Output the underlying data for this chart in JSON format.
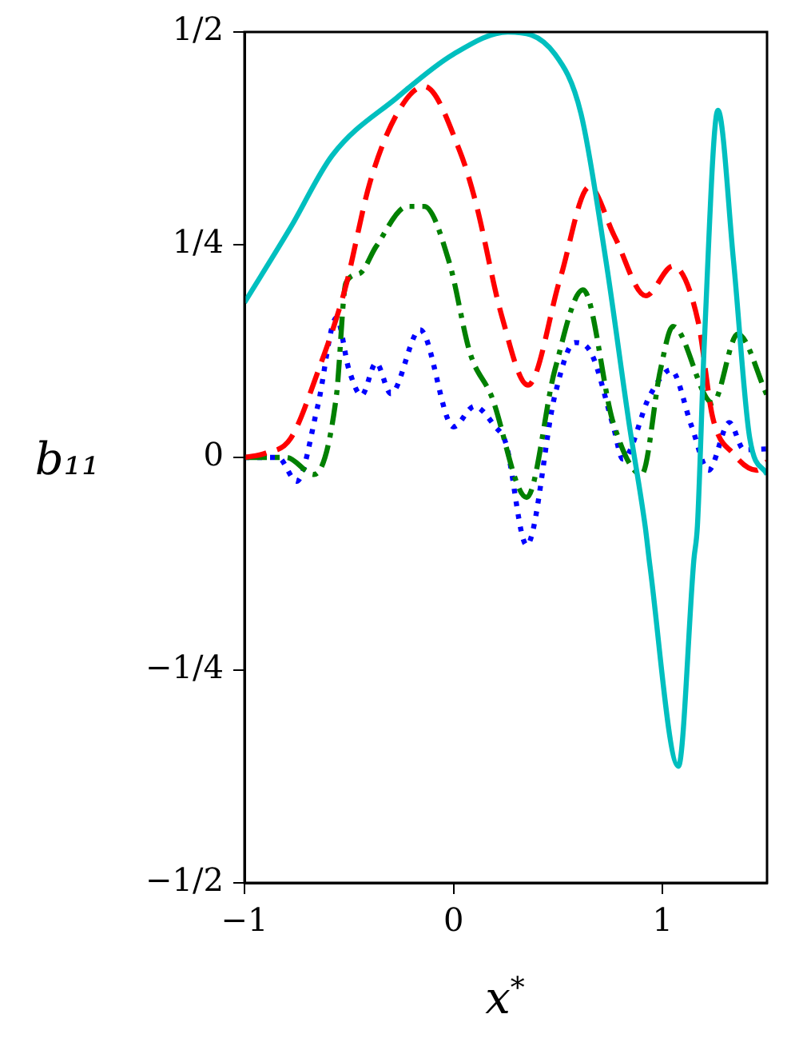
{
  "chart_data": {
    "type": "line",
    "xlabel": "x$^{*}$",
    "ylabel": "b₁₁",
    "xlim": [
      -1,
      1.5
    ],
    "ylim": [
      -0.5,
      0.5
    ],
    "xticks": [
      {
        "value": -1,
        "label": "−1"
      },
      0,
      1
    ],
    "yticks": [
      {
        "value": -0.5,
        "label": "−1/2"
      },
      {
        "value": -0.25,
        "label": "−1/4"
      },
      {
        "value": 0,
        "label": "0"
      },
      {
        "value": 0.25,
        "label": "1/4"
      },
      {
        "value": 0.5,
        "label": "1/2"
      }
    ],
    "grid": false,
    "legend": false,
    "marker": "none",
    "series": [
      {
        "color": "#00bfbf",
        "line_style": "solid",
        "x": [
          -1,
          -0.78,
          -0.58,
          -0.27,
          0,
          0.26,
          0.485,
          0.61,
          0.73,
          0.84,
          0.917,
          0.94,
          1.076,
          1.15,
          1.167,
          1.2,
          1.265,
          1.34,
          1.417,
          1.5
        ],
        "values": [
          0.182,
          0.27,
          0.355,
          0.423,
          0.474,
          0.5,
          0.474,
          0.404,
          0.23,
          0.04,
          -0.081,
          -0.128,
          -0.363,
          -0.12,
          -0.08,
          0.135,
          0.408,
          0.23,
          0.023,
          -0.02
        ]
      },
      {
        "color": "#ff0000",
        "line_style": "dashed",
        "x": [
          -1,
          -0.9,
          -0.78,
          -0.65,
          -0.52,
          -0.4,
          -0.27,
          -0.14,
          0.03,
          0.106,
          0.23,
          0.356,
          0.51,
          0.65,
          0.77,
          0.92,
          1.05,
          1.17,
          1.24,
          1.34,
          1.45,
          1.5
        ],
        "values": [
          0,
          0.005,
          0.022,
          0.1,
          0.197,
          0.323,
          0.404,
          0.436,
          0.36,
          0.3,
          0.167,
          0.085,
          0.21,
          0.318,
          0.26,
          0.19,
          0.225,
          0.16,
          0.047,
          0.004,
          -0.015,
          -0.005
        ]
      },
      {
        "color": "#008000",
        "line_style": "dashdot",
        "x": [
          -1,
          -0.8,
          -0.667,
          -0.56,
          -0.515,
          -0.45,
          -0.37,
          -0.22,
          -0.14,
          -0.02,
          0.08,
          0.18,
          0.35,
          0.485,
          0.62,
          0.765,
          0.9,
          0.99,
          1.05,
          1.24,
          1.36,
          1.5
        ],
        "values": [
          0,
          0,
          -0.02,
          0.073,
          0.205,
          0.216,
          0.248,
          0.295,
          0.295,
          0.229,
          0.122,
          0.073,
          -0.047,
          0.103,
          0.197,
          0.04,
          -0.02,
          0.103,
          0.154,
          0.064,
          0.145,
          0.073
        ]
      },
      {
        "color": "#0000ff",
        "line_style": "dotted",
        "x": [
          -1,
          -0.84,
          -0.75,
          -0.65,
          -0.56,
          -0.5,
          -0.44,
          -0.37,
          -0.3,
          -0.16,
          0,
          0.1,
          0.2,
          0.25,
          0.35,
          0.485,
          0.58,
          0.66,
          0.765,
          0.81,
          0.94,
          1.04,
          1.14,
          1.22,
          1.32,
          1.39,
          1.5
        ],
        "values": [
          0,
          0,
          -0.028,
          0.06,
          0.164,
          0.103,
          0.073,
          0.111,
          0.075,
          0.15,
          0.036,
          0.06,
          0.036,
          0.017,
          -0.103,
          0.073,
          0.135,
          0.122,
          0.036,
          -0.002,
          0.073,
          0.103,
          0.036,
          -0.015,
          0.041,
          0.009,
          0.01
        ]
      }
    ]
  }
}
